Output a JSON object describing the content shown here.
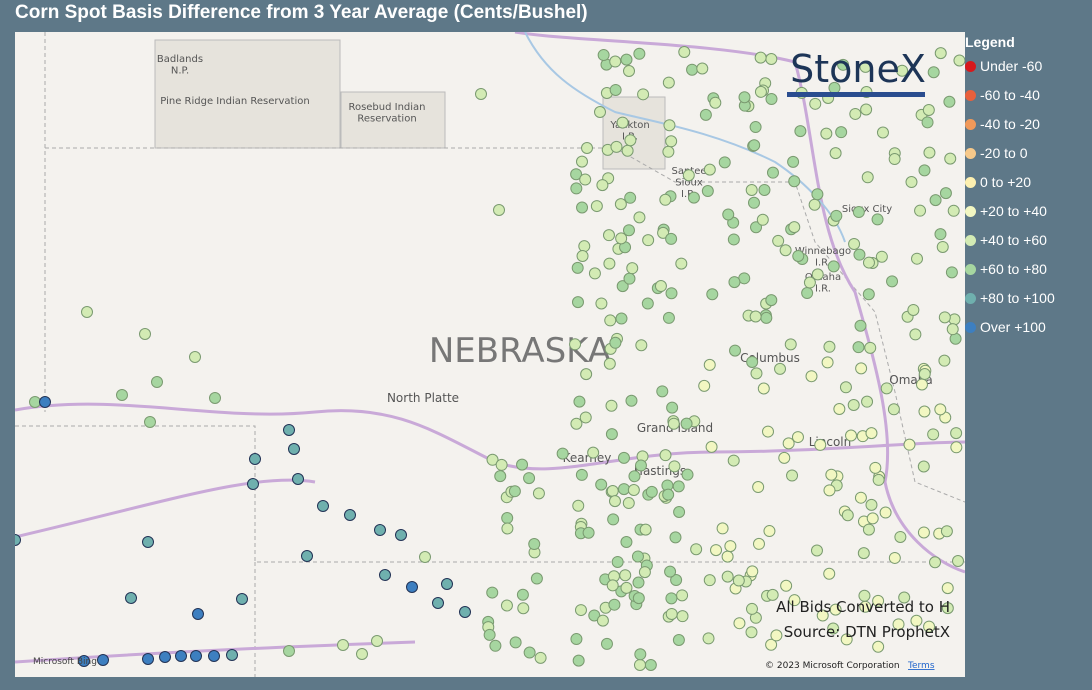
{
  "header": {
    "title": "Corn Spot Basis Difference from 3 Year Average (Cents/Bushel)"
  },
  "map_labels": {
    "badlands": "Badlands\nN.P.",
    "pine_ridge": "Pine Ridge Indian Reservation",
    "rosebud": "Rosebud Indian\nReservation",
    "yankton": "Yankton\nI.R.",
    "santee": "Santee\nSioux\nI.R.",
    "sioux_city": "Sioux City",
    "winnebago": "Winnebago\nI.R.",
    "omaha_ir": "Omaha\nI.R.",
    "state": "NEBRASKA",
    "north_platte": "North Platte",
    "columbus": "Columbus",
    "omaha": "Omaha",
    "grand_island": "Grand Island",
    "kearney": "Kearney",
    "hastings": "Hastings",
    "lincoln": "Lincoln"
  },
  "brand": "StoneX",
  "legend": {
    "title": "Legend",
    "items": [
      {
        "name": "Under -60",
        "color": "#d7191c"
      },
      {
        "name": "-60 to -40",
        "color": "#e8603c"
      },
      {
        "name": "-40 to -20",
        "color": "#f0995a"
      },
      {
        "name": "-20 to 0",
        "color": "#f7c98a"
      },
      {
        "name": "0 to +20",
        "color": "#fdf0b0"
      },
      {
        "name": "+20 to +40",
        "color": "#f2f7c2"
      },
      {
        "name": "+40 to +60",
        "color": "#d3ebb4"
      },
      {
        "name": "+60 to +80",
        "color": "#a6d6a0"
      },
      {
        "name": "+80 to +100",
        "color": "#6fb0ae"
      },
      {
        "name": "Over +100",
        "color": "#3d7fc0"
      }
    ]
  },
  "notes": {
    "converted": "All Bids Converted to H",
    "source": "Source: DTN ProphetX"
  },
  "footer": {
    "bing": "Microsoft Bing",
    "copyright": "© 2023 Microsoft Corporation",
    "terms": "Terms"
  }
}
